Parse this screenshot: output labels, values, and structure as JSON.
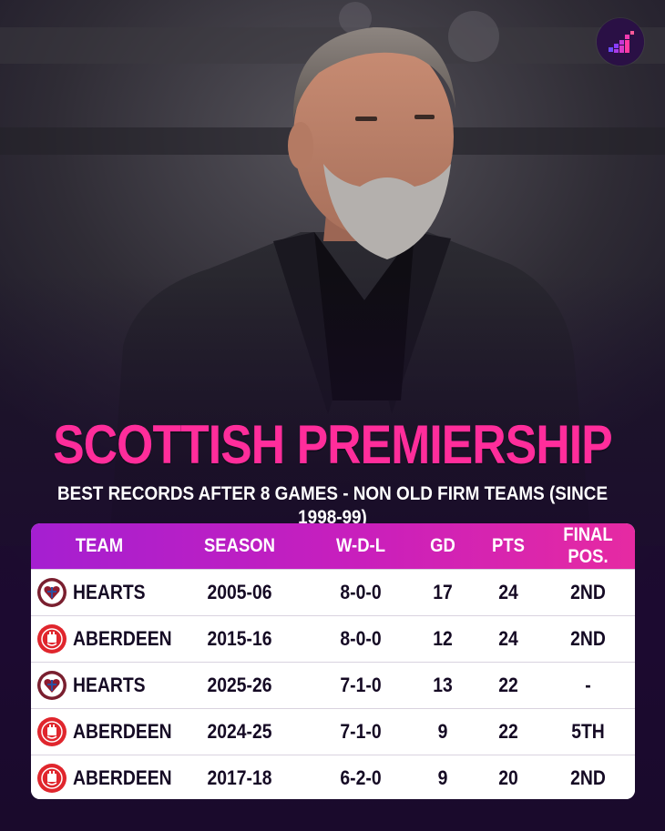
{
  "title": "SCOTTISH PREMIERSHIP",
  "subtitle": "BEST RECORDS AFTER 8 GAMES - NON OLD FIRM TEAMS (SINCE 1998-99)",
  "brand": {
    "accent": "#ff2d9b",
    "header_gradient": [
      "#a51fd1",
      "#e62aa2"
    ]
  },
  "logo": {
    "icon": "rising-bars-logo-icon"
  },
  "photo": {
    "subject": "manager-portrait"
  },
  "table": {
    "headers": {
      "team": "TEAM",
      "season": "SEASON",
      "wdl": "W-D-L",
      "gd": "GD",
      "pts": "PTS",
      "final": "FINAL POS."
    },
    "rows": [
      {
        "crest": "hearts-crest-icon",
        "team": "HEARTS",
        "season": "2005-06",
        "wdl": "8-0-0",
        "gd": "17",
        "pts": "24",
        "final": "2ND"
      },
      {
        "crest": "aberdeen-crest-icon",
        "team": "ABERDEEN",
        "season": "2015-16",
        "wdl": "8-0-0",
        "gd": "12",
        "pts": "24",
        "final": "2ND"
      },
      {
        "crest": "hearts-crest-icon",
        "team": "HEARTS",
        "season": "2025-26",
        "wdl": "7-1-0",
        "gd": "13",
        "pts": "22",
        "final": "-"
      },
      {
        "crest": "aberdeen-crest-icon",
        "team": "ABERDEEN",
        "season": "2024-25",
        "wdl": "7-1-0",
        "gd": "9",
        "pts": "22",
        "final": "5TH"
      },
      {
        "crest": "aberdeen-crest-icon",
        "team": "ABERDEEN",
        "season": "2017-18",
        "wdl": "6-2-0",
        "gd": "9",
        "pts": "20",
        "final": "2ND"
      }
    ]
  }
}
